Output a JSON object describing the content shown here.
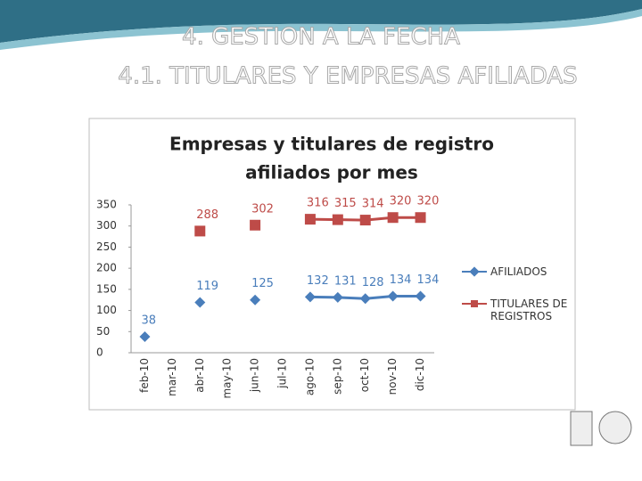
{
  "slide": {
    "title": "4.    GESTION A LA FECHA",
    "subtitle": "4.1. TITULARES Y EMPRESAS AFILIADAS"
  },
  "chart_data": {
    "type": "line",
    "title": "Empresas y titulares de registro",
    "title_line2": "afiliados por mes",
    "categories": [
      "feb-10",
      "mar-10",
      "abr-10",
      "may-10",
      "jun-10",
      "jul-10",
      "ago-10",
      "sep-10",
      "oct-10",
      "nov-10",
      "dic-10"
    ],
    "series": [
      {
        "name": "AFILIADOS",
        "color": "#4a7ebb",
        "values": [
          38,
          null,
          119,
          null,
          125,
          null,
          132,
          131,
          128,
          134,
          134
        ]
      },
      {
        "name": "TITULARES DE REGISTROS",
        "color": "#be4b48",
        "values": [
          null,
          null,
          288,
          null,
          302,
          null,
          316,
          315,
          314,
          320,
          320
        ]
      }
    ],
    "ylim": [
      0,
      350
    ],
    "yticks": [
      0,
      50,
      100,
      150,
      200,
      250,
      300,
      350
    ],
    "grid": false,
    "legend": "right"
  }
}
